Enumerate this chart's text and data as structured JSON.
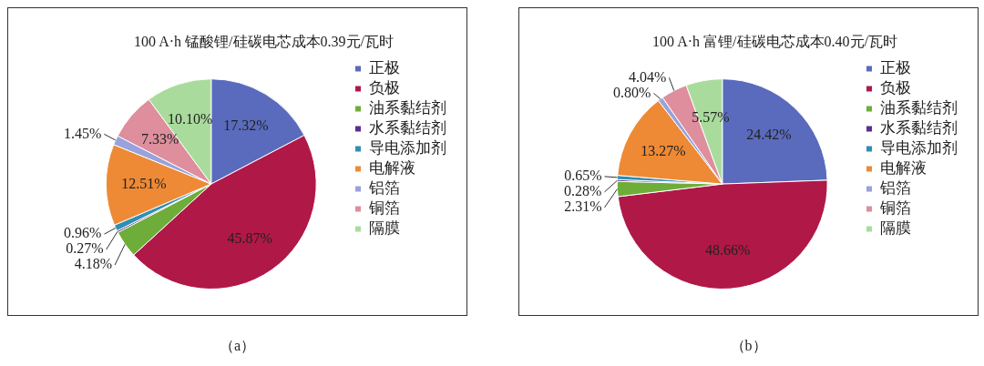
{
  "chart_data": [
    {
      "type": "pie",
      "title": "100 A·h 锰酸锂/硅碳电芯成本0.39元/瓦时",
      "categories": [
        "正极",
        "负极",
        "油系黏结剂",
        "水系黏结剂",
        "导电添加剂",
        "电解液",
        "铝箔",
        "铜箔",
        "隔膜"
      ],
      "values": [
        17.32,
        45.87,
        4.18,
        0.27,
        0.96,
        12.51,
        1.45,
        7.33,
        10.1
      ],
      "value_labels": [
        "17.32%",
        "45.87%",
        "4.18%",
        "0.27%",
        "0.96%",
        "12.51%",
        "1.45%",
        "7.33%",
        "10.10%"
      ],
      "colors": [
        "#5a6bbd",
        "#b01848",
        "#6fad3a",
        "#5c2d91",
        "#2f8fb3",
        "#ee8a35",
        "#98a2dc",
        "#de8e9c",
        "#a9dc9c"
      ],
      "legend": "right",
      "annotations": [
        "（a）"
      ]
    },
    {
      "type": "pie",
      "title": "100 A·h 富锂/硅碳电芯成本0.40元/瓦时",
      "categories": [
        "正极",
        "负极",
        "油系黏结剂",
        "水系黏结剂",
        "导电添加剂",
        "电解液",
        "铝箔",
        "铜箔",
        "隔膜"
      ],
      "values": [
        24.42,
        48.66,
        2.31,
        0.28,
        0.65,
        13.27,
        0.8,
        4.04,
        5.57
      ],
      "value_labels": [
        "24.42%",
        "48.66%",
        "2.31%",
        "0.28%",
        "0.65%",
        "13.27%",
        "0.80%",
        "4.04%",
        "5.57%"
      ],
      "colors": [
        "#5a6bbd",
        "#b01848",
        "#6fad3a",
        "#5c2d91",
        "#2f8fb3",
        "#ee8a35",
        "#98a2dc",
        "#de8e9c",
        "#a9dc9c"
      ],
      "legend": "right",
      "annotations": [
        "（b）"
      ]
    }
  ]
}
